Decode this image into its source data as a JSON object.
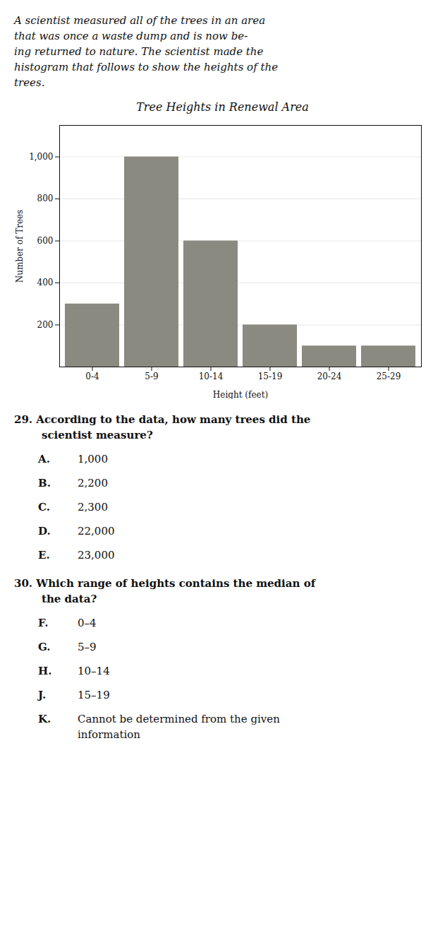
{
  "chart_data": {
    "type": "bar",
    "title": "Tree Heights in Renewal Area",
    "subtitle": [
      "A scientist measured all of the trees in an area",
      "that was once a waste dump and is now be-",
      "ing returned to nature. The scientist made the",
      "histogram that follows to show the heights of the",
      "trees."
    ],
    "xlabel": "Height (feet)",
    "ylabel": "Number of Trees",
    "categories": [
      "0-4",
      "5-9",
      "10-14",
      "15-19",
      "20-24",
      "25-29"
    ],
    "values": [
      300,
      1000,
      600,
      200,
      100,
      100
    ],
    "color": "#8a8a80",
    "ylim": [
      0,
      1150
    ],
    "yticks": [
      200,
      400,
      600,
      800,
      {
        "value": 1000,
        "label": "1,000"
      }
    ],
    "grid": true,
    "annotations": [
      {
        "text": [
          "29.  According to the data, how many trees did the",
          "scientist measure?"
        ],
        "options": [
          [
            "A.",
            "1,000"
          ],
          [
            "B.",
            "2,200"
          ],
          [
            "C.",
            "2,300"
          ],
          [
            "D.",
            "22,000"
          ],
          [
            "E.",
            "23,000"
          ]
        ]
      },
      {
        "text": [
          "30.  Which range of heights contains the median of",
          "the data?"
        ],
        "options": [
          [
            "F.",
            "0–4"
          ],
          [
            "G.",
            "5–9"
          ],
          [
            "H.",
            "10–14"
          ],
          [
            "J.",
            "15–19"
          ],
          [
            "K.",
            "Cannot be determined from the given",
            "information"
          ]
        ]
      }
    ]
  }
}
